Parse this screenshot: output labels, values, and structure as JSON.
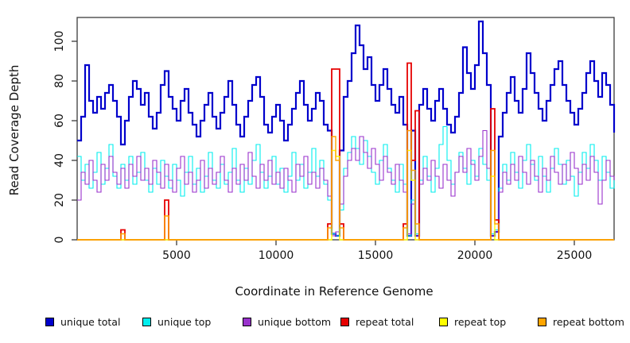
{
  "chart_data": {
    "type": "line",
    "line_style": "step",
    "title": "",
    "xlabel": "Coordinate in Reference Genome",
    "ylabel": "Read Coverage Depth",
    "xlim": [
      0,
      27000
    ],
    "ylim": [
      0,
      112
    ],
    "x_ticks": [
      5000,
      10000,
      15000,
      20000,
      25000
    ],
    "y_ticks": [
      0,
      20,
      40,
      60,
      80,
      100
    ],
    "grid": false,
    "legend_position": "bottom",
    "x_start": 0,
    "x_step": 200,
    "series": [
      {
        "name": "unique total",
        "color": "#0000CC",
        "width": 2.2,
        "values": [
          50,
          62,
          88,
          70,
          64,
          72,
          66,
          74,
          78,
          70,
          62,
          48,
          60,
          72,
          80,
          76,
          68,
          74,
          62,
          56,
          64,
          78,
          85,
          72,
          66,
          60,
          70,
          76,
          64,
          58,
          52,
          60,
          68,
          74,
          62,
          56,
          64,
          72,
          80,
          68,
          58,
          52,
          62,
          70,
          78,
          82,
          72,
          58,
          54,
          62,
          68,
          60,
          50,
          58,
          66,
          74,
          80,
          68,
          60,
          66,
          74,
          70,
          58,
          55,
          3,
          2,
          45,
          72,
          80,
          94,
          108,
          98,
          86,
          92,
          78,
          70,
          78,
          86,
          76,
          68,
          64,
          72,
          58,
          2,
          55,
          2,
          68,
          76,
          66,
          60,
          70,
          76,
          66,
          58,
          54,
          62,
          74,
          97,
          84,
          76,
          88,
          110,
          94,
          78,
          2,
          4,
          52,
          64,
          74,
          82,
          70,
          64,
          76,
          94,
          84,
          74,
          66,
          60,
          70,
          78,
          86,
          90,
          78,
          70,
          64,
          58,
          66,
          74,
          84,
          90,
          80,
          72,
          84,
          78,
          68,
          54
        ]
      },
      {
        "name": "unique top",
        "color": "#00EEEE",
        "width": 1.1,
        "values": [
          42,
          30,
          38,
          26,
          34,
          44,
          28,
          36,
          48,
          32,
          26,
          38,
          30,
          42,
          28,
          34,
          44,
          30,
          24,
          36,
          28,
          40,
          32,
          26,
          38,
          30,
          22,
          34,
          42,
          28,
          36,
          24,
          32,
          44,
          30,
          26,
          38,
          28,
          34,
          46,
          30,
          24,
          36,
          28,
          40,
          48,
          34,
          26,
          32,
          42,
          28,
          36,
          24,
          32,
          44,
          30,
          38,
          26,
          34,
          46,
          32,
          40,
          28,
          20,
          3,
          2,
          15,
          36,
          44,
          52,
          46,
          38,
          50,
          42,
          34,
          28,
          40,
          48,
          36,
          30,
          24,
          38,
          28,
          2,
          20,
          3,
          30,
          42,
          32,
          24,
          36,
          48,
          57,
          40,
          28,
          34,
          44,
          36,
          28,
          40,
          32,
          46,
          38,
          30,
          3,
          5,
          26,
          38,
          30,
          44,
          34,
          26,
          40,
          48,
          38,
          30,
          42,
          32,
          24,
          36,
          46,
          38,
          28,
          40,
          32,
          22,
          34,
          44,
          36,
          48,
          40,
          30,
          42,
          34,
          26,
          30
        ]
      },
      {
        "name": "unique bottom",
        "color": "#9932CC",
        "width": 1.1,
        "values": [
          20,
          34,
          28,
          40,
          30,
          24,
          38,
          30,
          42,
          34,
          28,
          36,
          26,
          38,
          32,
          42,
          30,
          36,
          28,
          40,
          34,
          26,
          38,
          30,
          24,
          36,
          42,
          28,
          34,
          24,
          30,
          40,
          26,
          36,
          28,
          34,
          42,
          30,
          24,
          36,
          28,
          38,
          30,
          44,
          32,
          26,
          38,
          30,
          40,
          28,
          34,
          26,
          36,
          30,
          24,
          38,
          32,
          42,
          28,
          34,
          26,
          36,
          30,
          22,
          2,
          4,
          18,
          32,
          40,
          46,
          40,
          52,
          44,
          36,
          46,
          38,
          30,
          42,
          34,
          28,
          38,
          30,
          24,
          3,
          18,
          2,
          28,
          36,
          30,
          40,
          32,
          26,
          38,
          30,
          22,
          34,
          42,
          34,
          46,
          38,
          30,
          42,
          55,
          36,
          2,
          4,
          24,
          34,
          28,
          38,
          30,
          42,
          34,
          28,
          40,
          32,
          24,
          36,
          30,
          42,
          34,
          28,
          38,
          30,
          44,
          36,
          28,
          38,
          30,
          42,
          34,
          18,
          30,
          40,
          32,
          30
        ]
      },
      {
        "name": "repeat total",
        "color": "#E60000",
        "width": 1.8,
        "values": [
          0,
          0,
          0,
          0,
          0,
          0,
          0,
          0,
          0,
          0,
          0,
          5,
          0,
          0,
          0,
          0,
          0,
          0,
          0,
          0,
          0,
          0,
          20,
          0,
          0,
          0,
          0,
          0,
          0,
          0,
          0,
          0,
          0,
          0,
          0,
          0,
          0,
          0,
          0,
          0,
          0,
          0,
          0,
          0,
          0,
          0,
          0,
          0,
          0,
          0,
          0,
          0,
          0,
          0,
          0,
          0,
          0,
          0,
          0,
          0,
          0,
          0,
          0,
          8,
          86,
          86,
          8,
          0,
          0,
          0,
          0,
          0,
          0,
          0,
          0,
          0,
          0,
          0,
          0,
          0,
          0,
          0,
          8,
          89,
          40,
          65,
          0,
          0,
          0,
          0,
          0,
          0,
          0,
          0,
          0,
          0,
          0,
          0,
          0,
          0,
          0,
          0,
          0,
          0,
          66,
          10,
          0,
          0,
          0,
          0,
          0,
          0,
          0,
          0,
          0,
          0,
          0,
          0,
          0,
          0,
          0,
          0,
          0,
          0,
          0,
          0,
          0,
          0,
          0,
          0,
          0,
          0,
          0,
          0,
          0,
          0
        ]
      },
      {
        "name": "repeat top",
        "color": "#FFFF00",
        "width": 1.4,
        "values": [
          0,
          0,
          0,
          0,
          0,
          0,
          0,
          0,
          0,
          0,
          0,
          0,
          0,
          0,
          0,
          0,
          0,
          0,
          0,
          0,
          0,
          0,
          0,
          0,
          0,
          0,
          0,
          0,
          0,
          0,
          0,
          0,
          0,
          0,
          0,
          0,
          0,
          0,
          0,
          0,
          0,
          0,
          0,
          0,
          0,
          0,
          0,
          0,
          0,
          0,
          0,
          0,
          0,
          0,
          0,
          0,
          0,
          0,
          0,
          0,
          0,
          0,
          0,
          0,
          45,
          42,
          0,
          0,
          0,
          0,
          0,
          0,
          0,
          0,
          0,
          0,
          0,
          0,
          0,
          0,
          0,
          0,
          0,
          45,
          30,
          0,
          0,
          0,
          0,
          0,
          0,
          0,
          0,
          0,
          0,
          0,
          0,
          0,
          0,
          0,
          0,
          0,
          0,
          0,
          32,
          0,
          0,
          0,
          0,
          0,
          0,
          0,
          0,
          0,
          0,
          0,
          0,
          0,
          0,
          0,
          0,
          0,
          0,
          0,
          0,
          0,
          0,
          0,
          0,
          0,
          0,
          0,
          0,
          0,
          0,
          0
        ]
      },
      {
        "name": "repeat bottom",
        "color": "#FFA500",
        "width": 1.4,
        "values": [
          0,
          0,
          0,
          0,
          0,
          0,
          0,
          0,
          0,
          0,
          0,
          3,
          0,
          0,
          0,
          0,
          0,
          0,
          0,
          0,
          0,
          0,
          12,
          0,
          0,
          0,
          0,
          0,
          0,
          0,
          0,
          0,
          0,
          0,
          0,
          0,
          0,
          0,
          0,
          0,
          0,
          0,
          0,
          0,
          0,
          0,
          0,
          0,
          0,
          0,
          0,
          0,
          0,
          0,
          0,
          0,
          0,
          0,
          0,
          0,
          0,
          0,
          0,
          6,
          52,
          40,
          6,
          0,
          0,
          0,
          0,
          0,
          0,
          0,
          0,
          0,
          0,
          0,
          0,
          0,
          0,
          0,
          6,
          55,
          35,
          8,
          0,
          0,
          0,
          0,
          0,
          0,
          0,
          0,
          0,
          0,
          0,
          0,
          0,
          0,
          0,
          0,
          0,
          0,
          45,
          8,
          0,
          0,
          0,
          0,
          0,
          0,
          0,
          0,
          0,
          0,
          0,
          0,
          0,
          0,
          0,
          0,
          0,
          0,
          0,
          0,
          0,
          0,
          0,
          0,
          0,
          0,
          0,
          0,
          0,
          0
        ]
      }
    ]
  }
}
